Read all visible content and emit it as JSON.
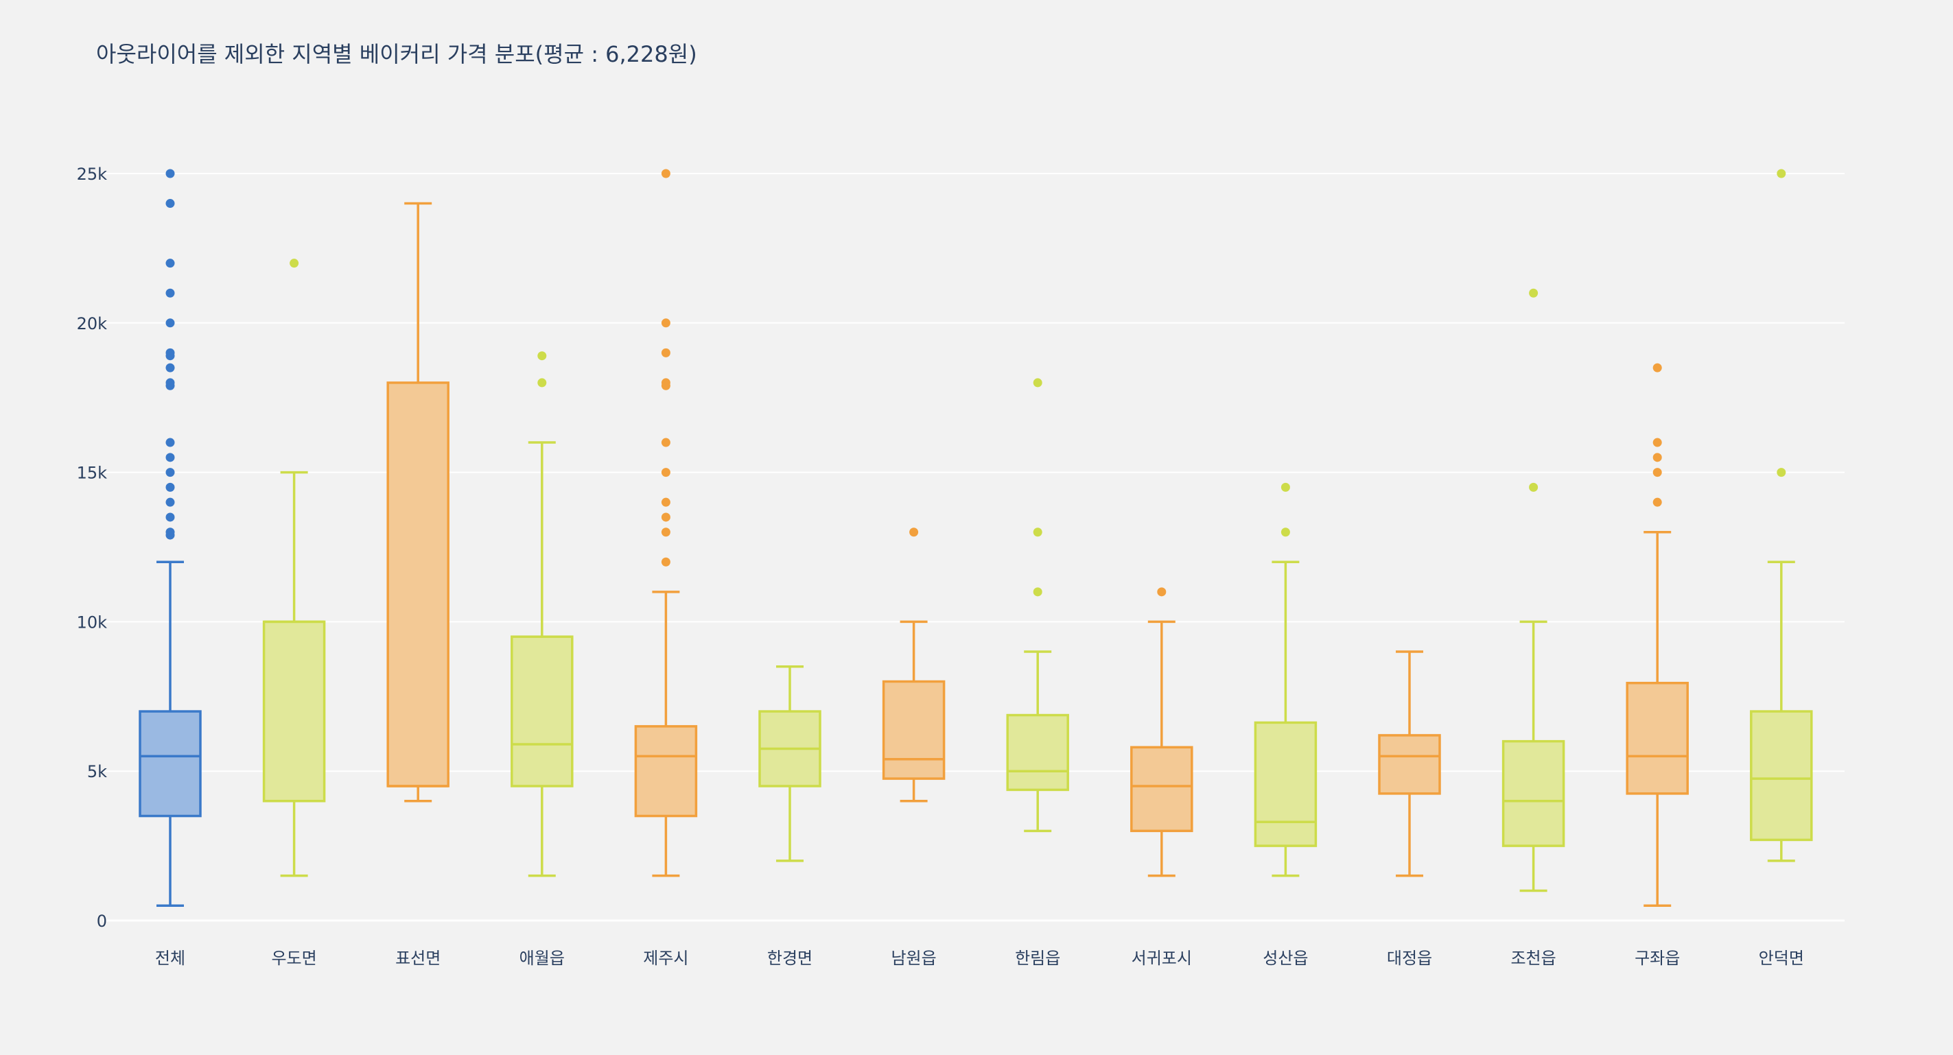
{
  "chart_data": {
    "type": "box",
    "title": "아웃라이어를 제외한 지역별 베이커리 가격 분포(평균 : 6,228원)",
    "xlabel": "",
    "ylabel": "",
    "ylim": [
      0,
      25000
    ],
    "yticks": [
      0,
      5000,
      10000,
      15000,
      20000,
      25000
    ],
    "ytick_labels": [
      "0",
      "5k",
      "10k",
      "15k",
      "20k",
      "25k"
    ],
    "grid": true,
    "legend": "none",
    "colors": {
      "blue_line": "#3a79c9",
      "blue_fill": "#9ab9e2",
      "orange_line": "#f2a03d",
      "orange_fill": "#f3c995",
      "green_line": "#cddc4a",
      "green_fill": "#e1e89a",
      "grid": "#ffffff",
      "background": "#f2f2f2",
      "text": "#2a3f5f"
    },
    "categories": [
      "전체",
      "우도면",
      "표선면",
      "애월읍",
      "제주시",
      "한경면",
      "남원읍",
      "한림읍",
      "서귀포시",
      "성산읍",
      "대정읍",
      "조천읍",
      "구좌읍",
      "안덕면"
    ],
    "boxes": [
      {
        "category": "전체",
        "color": "blue",
        "whisker_low": 500,
        "q1": 3500,
        "median": 5500,
        "q3": 7000,
        "whisker_high": 12000,
        "outliers": [
          12900,
          13000,
          13500,
          14000,
          14500,
          15000,
          15500,
          16000,
          17900,
          18000,
          18500,
          18900,
          19000,
          20000,
          21000,
          22000,
          24000,
          25000
        ]
      },
      {
        "category": "우도면",
        "color": "green",
        "whisker_low": 1500,
        "q1": 4000,
        "median": 10000,
        "q3": 10000,
        "whisker_high": 15000,
        "outliers": [
          22000
        ]
      },
      {
        "category": "표선면",
        "color": "orange",
        "whisker_low": 4000,
        "q1": 4500,
        "median": 4500,
        "q3": 18000,
        "whisker_high": 24000,
        "outliers": []
      },
      {
        "category": "애월읍",
        "color": "green",
        "whisker_low": 1500,
        "q1": 4500,
        "median": 5900,
        "q3": 9500,
        "whisker_high": 16000,
        "outliers": [
          18000,
          18900
        ]
      },
      {
        "category": "제주시",
        "color": "orange",
        "whisker_low": 1500,
        "q1": 3500,
        "median": 5500,
        "q3": 6500,
        "whisker_high": 11000,
        "outliers": [
          12000,
          13000,
          13500,
          14000,
          15000,
          16000,
          17900,
          18000,
          19000,
          20000,
          25000
        ]
      },
      {
        "category": "한경면",
        "color": "green",
        "whisker_low": 2000,
        "q1": 4500,
        "median": 5750,
        "q3": 7000,
        "whisker_high": 8500,
        "outliers": []
      },
      {
        "category": "남원읍",
        "color": "orange",
        "whisker_low": 4000,
        "q1": 4750,
        "median": 5400,
        "q3": 8000,
        "whisker_high": 10000,
        "outliers": [
          13000
        ]
      },
      {
        "category": "한림읍",
        "color": "green",
        "whisker_low": 3000,
        "q1": 4375,
        "median": 5000,
        "q3": 6875,
        "whisker_high": 9000,
        "outliers": [
          11000,
          13000,
          18000
        ]
      },
      {
        "category": "서귀포시",
        "color": "orange",
        "whisker_low": 1500,
        "q1": 3000,
        "median": 4500,
        "q3": 5800,
        "whisker_high": 10000,
        "outliers": [
          11000
        ]
      },
      {
        "category": "성산읍",
        "color": "green",
        "whisker_low": 1500,
        "q1": 2500,
        "median": 3300,
        "q3": 6625,
        "whisker_high": 12000,
        "outliers": [
          13000,
          14500
        ]
      },
      {
        "category": "대정읍",
        "color": "orange",
        "whisker_low": 1500,
        "q1": 4250,
        "median": 5500,
        "q3": 6200,
        "whisker_high": 9000,
        "outliers": []
      },
      {
        "category": "조천읍",
        "color": "green",
        "whisker_low": 1000,
        "q1": 2500,
        "median": 4000,
        "q3": 6000,
        "whisker_high": 10000,
        "outliers": [
          14500,
          21000
        ]
      },
      {
        "category": "구좌읍",
        "color": "orange",
        "whisker_low": 500,
        "q1": 4250,
        "median": 5500,
        "q3": 7950,
        "whisker_high": 13000,
        "outliers": [
          14000,
          15000,
          15500,
          16000,
          18500
        ]
      },
      {
        "category": "안덕면",
        "color": "green",
        "whisker_low": 2000,
        "q1": 2700,
        "median": 4750,
        "q3": 7000,
        "whisker_high": 12000,
        "outliers": [
          15000,
          25000
        ]
      }
    ]
  }
}
